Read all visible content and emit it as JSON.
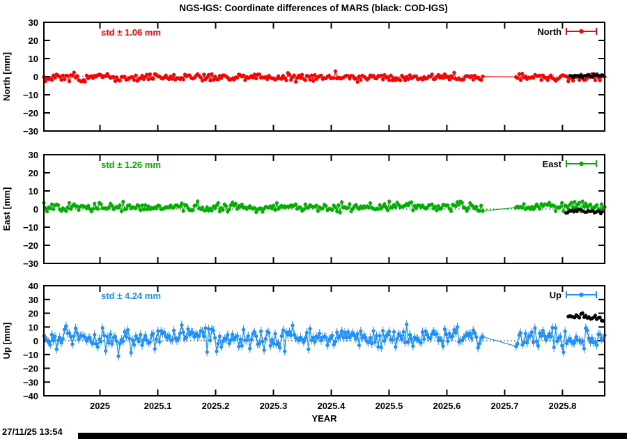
{
  "title": "NGS-IGS: Coordinate differences of MARS (black: COD-IGS)",
  "timestamp": "27/11/25 13:54",
  "chart_data": {
    "type": "scatter-line",
    "layout": "3 stacked panels, shared x axis, grid off, dotted zero line per panel",
    "x_label": "YEAR",
    "x_range": [
      2024.903,
      2025.873
    ],
    "x_ticks": {
      "values": [
        2025.0,
        2025.1,
        2025.2,
        2025.3,
        2025.4,
        2025.5,
        2025.6,
        2025.7,
        2025.8
      ],
      "labels": [
        "2025",
        "2025.1",
        "2025.2",
        "2025.3",
        "2025.4",
        "2025.5",
        "2025.6",
        "2025.7",
        "2025.8"
      ]
    },
    "sample_step_years": 0.00274,
    "data_gap": [
      2025.663,
      2025.719
    ],
    "overlay_meaning": "black points are COD-IGS differences plotted over the colored NGS-IGS series near 2025.81-2025.87",
    "panels": [
      {
        "id": "north",
        "y_label": "North [mm]",
        "ylim": [
          -30,
          30
        ],
        "y_ticks": {
          "values": [
            30,
            20,
            10,
            0,
            -10,
            -20,
            -30
          ],
          "labels": [
            "30",
            "20",
            "10",
            "0",
            "−10",
            "−20",
            "−30"
          ]
        },
        "std_label": "std ± 1.06 mm",
        "legend": "North",
        "color": "#ff0000",
        "zero_line": 0,
        "main": {
          "mean": -0.4,
          "std": 1.06,
          "trend": 0,
          "seed": 101,
          "x_start": 2024.903,
          "x_end": 2025.873,
          "gap": [
            2025.663,
            2025.719
          ],
          "gap_resume_y": -0.2,
          "point_r": 2.6,
          "errorbar_mm": 1.1,
          "clamp": [
            -3.8,
            3.0
          ]
        },
        "overlay": {
          "color": "#000000",
          "mean": 0.5,
          "std": 0.55,
          "trend": 0,
          "seed": 111,
          "x_start": 2025.813,
          "x_end": 2025.871,
          "point_r": 2.4,
          "errorbar_mm": 0.8,
          "clamp": [
            -1.4,
            1.9
          ]
        }
      },
      {
        "id": "east",
        "y_label": "East [mm]",
        "ylim": [
          -30,
          30
        ],
        "y_ticks": {
          "values": [
            30,
            20,
            10,
            0,
            -10,
            -20,
            -30
          ],
          "labels": [
            "30",
            "20",
            "10",
            "0",
            "−10",
            "−20",
            "−30"
          ]
        },
        "std_label": "std ± 1.26 mm",
        "legend": "East",
        "color": "#00b000",
        "zero_line": 0,
        "main": {
          "mean": 0.9,
          "std": 1.26,
          "trend": 0.6,
          "seed": 202,
          "x_start": 2024.903,
          "x_end": 2025.873,
          "gap": [
            2025.663,
            2025.719
          ],
          "gap_resume_y": 0.9,
          "point_r": 2.6,
          "errorbar_mm": 1.2,
          "clamp": [
            -2.2,
            4.2
          ]
        },
        "overlay": {
          "color": "#000000",
          "mean": -1.4,
          "std": 0.6,
          "trend": 0,
          "seed": 222,
          "x_start": 2025.806,
          "x_end": 2025.871,
          "point_r": 2.4,
          "errorbar_mm": 0.9,
          "clamp": [
            -3.0,
            0.4
          ]
        }
      },
      {
        "id": "up",
        "y_label": "Up [mm]",
        "ylim": [
          -40,
          40
        ],
        "y_ticks": {
          "values": [
            40,
            30,
            20,
            10,
            0,
            -10,
            -20,
            -30,
            -40
          ],
          "labels": [
            "40",
            "30",
            "20",
            "10",
            "0",
            "−10",
            "−20",
            "−30",
            "−40"
          ]
        },
        "std_label": "std ± 4.24 mm",
        "legend": "Up",
        "color": "#1e90ff",
        "zero_line": 0,
        "main": {
          "mean": 3.0,
          "std": 3.3,
          "trend": 0,
          "seed": 303,
          "x_start": 2024.903,
          "x_end": 2025.873,
          "gap": [
            2025.663,
            2025.719
          ],
          "gap_resume_y": -4.0,
          "spikes": {
            "prob": 0.17,
            "mag": 10,
            "strong_until": 2025.35,
            "weak": 0.55
          },
          "point_r": 2.6,
          "errorbar_mm": 3.2,
          "clamp": [
            -11.5,
            12.5
          ]
        },
        "overlay": {
          "color": "#000000",
          "mean": 19.5,
          "std": 1.1,
          "trend": -70,
          "seed": 333,
          "x_start": 2025.81,
          "x_end": 2025.871,
          "point_r": 2.5,
          "errorbar_mm": 1.4,
          "clamp": [
            9.0,
            21.5
          ]
        }
      }
    ]
  }
}
